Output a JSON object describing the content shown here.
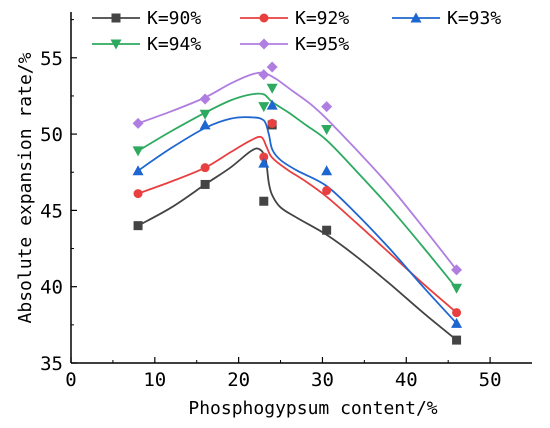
{
  "chart_data": {
    "type": "scatter",
    "xlabel": "Phosphogypsum content/%",
    "ylabel": "Absolute expansion rate/%",
    "xlim": [
      0,
      55
    ],
    "ylim": [
      35,
      58
    ],
    "xticks": [
      "0",
      "10",
      "20",
      "30",
      "40",
      "50"
    ],
    "yticks": [
      "35",
      "40",
      "45",
      "50",
      "55"
    ],
    "xtick_values": [
      0,
      10,
      20,
      30,
      40,
      50
    ],
    "ytick_values": [
      35,
      40,
      45,
      50,
      55
    ],
    "grid": false,
    "legend_position": "top",
    "series": [
      {
        "name": "K=90%",
        "color": "#444444",
        "marker": "square",
        "x": [
          8,
          16,
          23,
          24,
          30.5,
          46
        ],
        "y": [
          44.0,
          46.7,
          45.6,
          50.6,
          43.7,
          36.5
        ],
        "curve": [
          [
            8,
            44.0
          ],
          [
            12,
            45.2
          ],
          [
            16,
            46.7
          ],
          [
            19,
            47.8
          ],
          [
            21.5,
            48.9
          ],
          [
            22.5,
            49.0
          ],
          [
            23.2,
            48.4
          ],
          [
            23.6,
            46.8
          ],
          [
            24,
            46.0
          ],
          [
            25,
            45.2
          ],
          [
            27,
            44.5
          ],
          [
            30.5,
            43.4
          ],
          [
            34,
            42.0
          ],
          [
            38,
            40.2
          ],
          [
            42,
            38.3
          ],
          [
            46,
            36.5
          ]
        ]
      },
      {
        "name": "K=92%",
        "color": "#e84040",
        "marker": "circle",
        "x": [
          8,
          16,
          23,
          24,
          30.5,
          46
        ],
        "y": [
          46.1,
          47.8,
          48.5,
          50.7,
          46.3,
          38.3
        ],
        "curve": [
          [
            8,
            46.1
          ],
          [
            12,
            46.9
          ],
          [
            16,
            47.8
          ],
          [
            19,
            48.8
          ],
          [
            21.5,
            49.6
          ],
          [
            22.7,
            49.8
          ],
          [
            23.3,
            49.2
          ],
          [
            23.8,
            48.6
          ],
          [
            24.5,
            48.2
          ],
          [
            26,
            47.6
          ],
          [
            28,
            46.9
          ],
          [
            30.5,
            45.9
          ],
          [
            34,
            44.2
          ],
          [
            38,
            42.2
          ],
          [
            42,
            40.2
          ],
          [
            46,
            38.3
          ]
        ]
      },
      {
        "name": "K=93%",
        "color": "#1e66d0",
        "marker": "triangle",
        "x": [
          8,
          16,
          23,
          24,
          30.5,
          46
        ],
        "y": [
          47.6,
          50.6,
          48.1,
          51.9,
          47.6,
          37.6
        ],
        "curve": [
          [
            8,
            47.6
          ],
          [
            12,
            49.1
          ],
          [
            16,
            50.4
          ],
          [
            19,
            51.0
          ],
          [
            21.5,
            51.1
          ],
          [
            23,
            50.9
          ],
          [
            23.6,
            50.0
          ],
          [
            24,
            49.0
          ],
          [
            25,
            48.3
          ],
          [
            27,
            47.6
          ],
          [
            30.5,
            46.6
          ],
          [
            34,
            44.8
          ],
          [
            38,
            42.5
          ],
          [
            42,
            40.0
          ],
          [
            46,
            37.6
          ]
        ]
      },
      {
        "name": "K=94%",
        "color": "#2eaa60",
        "marker": "triangle-down",
        "x": [
          8,
          16,
          23,
          24,
          30.5,
          46
        ],
        "y": [
          48.9,
          51.3,
          51.8,
          53.0,
          50.3,
          39.9
        ],
        "curve": [
          [
            8,
            48.9
          ],
          [
            12,
            50.2
          ],
          [
            16,
            51.4
          ],
          [
            19,
            52.2
          ],
          [
            21.5,
            52.6
          ],
          [
            23,
            52.6
          ],
          [
            24,
            52.1
          ],
          [
            26,
            51.4
          ],
          [
            28,
            50.6
          ],
          [
            30.5,
            49.6
          ],
          [
            34,
            47.6
          ],
          [
            38,
            45.2
          ],
          [
            42,
            42.6
          ],
          [
            46,
            39.9
          ]
        ]
      },
      {
        "name": "K=95%",
        "color": "#b07ee0",
        "marker": "diamond",
        "x": [
          8,
          16,
          23,
          24,
          30.5,
          46
        ],
        "y": [
          50.7,
          52.3,
          53.9,
          54.4,
          51.8,
          41.1
        ],
        "curve": [
          [
            8,
            50.7
          ],
          [
            12,
            51.5
          ],
          [
            16,
            52.4
          ],
          [
            19,
            53.3
          ],
          [
            21.5,
            53.9
          ],
          [
            23,
            54.0
          ],
          [
            24.5,
            53.6
          ],
          [
            26.5,
            52.8
          ],
          [
            28.5,
            52.0
          ],
          [
            30.5,
            51.0
          ],
          [
            34,
            49.0
          ],
          [
            38,
            46.6
          ],
          [
            42,
            43.9
          ],
          [
            46,
            41.1
          ]
        ]
      }
    ]
  }
}
